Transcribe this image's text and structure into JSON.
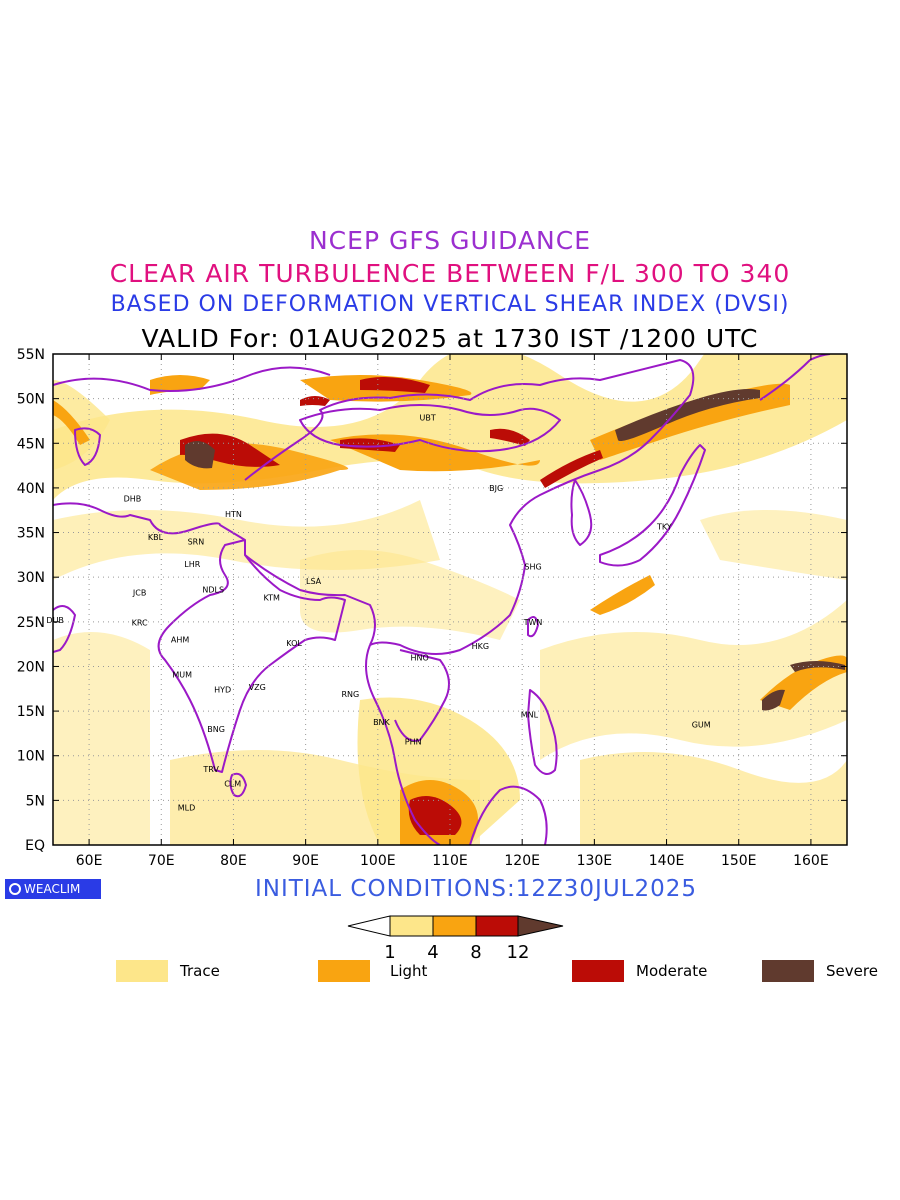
{
  "titles": {
    "line1": "NCEP GFS GUIDANCE",
    "line2": "CLEAR AIR TURBULENCE BETWEEN F/L 300 TO 340",
    "line3": "BASED ON DEFORMATION VERTICAL SHEAR INDEX (DVSI)",
    "line4": "VALID For: 01AUG2025 at 1730 IST /1200 UTC"
  },
  "colors": {
    "line1": "#9b2fcf",
    "line2": "#e0107f",
    "line3": "#2a3be6",
    "line4": "#000000",
    "initial": "#3a5ce0",
    "border": "#9b19c7",
    "trace": "#fde68a",
    "light": "#f9a411",
    "moderate": "#bb0c06",
    "severe": "#603a2e",
    "logo_bg": "#2a3be6"
  },
  "map": {
    "lon_range": [
      55,
      165
    ],
    "lat_range": [
      0,
      55
    ],
    "lon_ticks": [
      "60E",
      "70E",
      "80E",
      "90E",
      "100E",
      "110E",
      "120E",
      "130E",
      "140E",
      "150E",
      "160E"
    ],
    "lon_tick_values": [
      60,
      70,
      80,
      90,
      100,
      110,
      120,
      130,
      140,
      150,
      160
    ],
    "lat_ticks": [
      "EQ",
      "5N",
      "10N",
      "15N",
      "20N",
      "25N",
      "30N",
      "35N",
      "40N",
      "45N",
      "50N",
      "55N"
    ],
    "lat_tick_values": [
      0,
      5,
      10,
      15,
      20,
      25,
      30,
      35,
      40,
      45,
      50,
      55
    ],
    "stations": [
      {
        "code": "UBT",
        "lon": 106.9,
        "lat": 47.9
      },
      {
        "code": "BJG",
        "lon": 116.4,
        "lat": 40.0
      },
      {
        "code": "DHB",
        "lon": 66.0,
        "lat": 38.8
      },
      {
        "code": "HTN",
        "lon": 80.0,
        "lat": 37.1
      },
      {
        "code": "KBL",
        "lon": 69.2,
        "lat": 34.5
      },
      {
        "code": "SRN",
        "lon": 74.8,
        "lat": 34.0
      },
      {
        "code": "TKY",
        "lon": 139.7,
        "lat": 35.7
      },
      {
        "code": "LHR",
        "lon": 74.3,
        "lat": 31.5
      },
      {
        "code": "SHG",
        "lon": 121.5,
        "lat": 31.2
      },
      {
        "code": "LSA",
        "lon": 91.1,
        "lat": 29.6
      },
      {
        "code": "JCB",
        "lon": 67.0,
        "lat": 28.3
      },
      {
        "code": "NDLS",
        "lon": 77.2,
        "lat": 28.6
      },
      {
        "code": "KTM",
        "lon": 85.3,
        "lat": 27.7
      },
      {
        "code": "DUB",
        "lon": 55.3,
        "lat": 25.2
      },
      {
        "code": "KRC",
        "lon": 67.0,
        "lat": 24.9
      },
      {
        "code": "TWN",
        "lon": 121.5,
        "lat": 25.0
      },
      {
        "code": "AHM",
        "lon": 72.6,
        "lat": 23.0
      },
      {
        "code": "KOL",
        "lon": 88.4,
        "lat": 22.6
      },
      {
        "code": "HKG",
        "lon": 114.2,
        "lat": 22.3
      },
      {
        "code": "HNO",
        "lon": 105.8,
        "lat": 21.0
      },
      {
        "code": "MUM",
        "lon": 72.9,
        "lat": 19.1
      },
      {
        "code": "HYD",
        "lon": 78.5,
        "lat": 17.4
      },
      {
        "code": "VZG",
        "lon": 83.3,
        "lat": 17.7
      },
      {
        "code": "RNG",
        "lon": 96.2,
        "lat": 16.9
      },
      {
        "code": "MNL",
        "lon": 121.0,
        "lat": 14.6
      },
      {
        "code": "GUM",
        "lon": 144.8,
        "lat": 13.5
      },
      {
        "code": "BNK",
        "lon": 100.5,
        "lat": 13.8
      },
      {
        "code": "PHN",
        "lon": 104.9,
        "lat": 11.6
      },
      {
        "code": "BNG",
        "lon": 77.6,
        "lat": 13.0
      },
      {
        "code": "TRV",
        "lon": 76.9,
        "lat": 8.5
      },
      {
        "code": "CLM",
        "lon": 79.9,
        "lat": 6.9
      },
      {
        "code": "MLD",
        "lon": 73.5,
        "lat": 4.2
      }
    ]
  },
  "initial_conditions": "INITIAL CONDITIONS:12Z30JUL2025",
  "logo_text": "WEACLIM",
  "colorbar": {
    "ticks": [
      "1",
      "4",
      "8",
      "12"
    ],
    "tick_values": [
      1,
      4,
      8,
      12
    ]
  },
  "legend": [
    {
      "label": "Trace",
      "color": "#fde68a"
    },
    {
      "label": "Light",
      "color": "#f9a411"
    },
    {
      "label": "Moderate",
      "color": "#bb0c06"
    },
    {
      "label": "Severe",
      "color": "#603a2e"
    }
  ]
}
